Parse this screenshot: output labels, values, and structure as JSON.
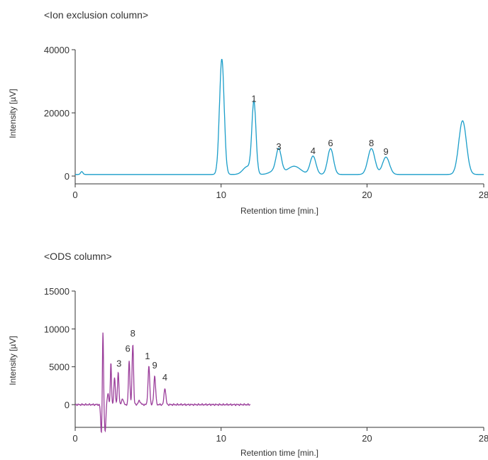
{
  "chart_data": [
    {
      "type": "line",
      "title": "<Ion exclusion column>",
      "xlabel": "Retention time [min.]",
      "ylabel": "Intensity [µV]",
      "xlim": [
        0,
        28
      ],
      "ylim": [
        0,
        40000
      ],
      "x_ticks": [
        0,
        10,
        20,
        28
      ],
      "y_ticks": [
        0,
        20000,
        40000
      ],
      "color": "#1a9dc9",
      "series": [
        {
          "baseline": 500,
          "trace_end": 28,
          "peaks": [
            {
              "x": 0.45,
              "y": 900,
              "width": 0.08
            },
            {
              "x": 10.05,
              "y": 36500,
              "width": 0.16
            },
            {
              "x": 11.8,
              "y": 2500,
              "width": 0.3
            },
            {
              "x": 12.25,
              "y": 22500,
              "width": 0.14
            },
            {
              "x": 13.7,
              "y": 1200,
              "width": 0.35
            },
            {
              "x": 13.95,
              "y": 7200,
              "width": 0.18
            },
            {
              "x": 15.0,
              "y": 2600,
              "width": 0.45
            },
            {
              "x": 16.3,
              "y": 5800,
              "width": 0.2
            },
            {
              "x": 17.5,
              "y": 8200,
              "width": 0.2
            },
            {
              "x": 20.3,
              "y": 8200,
              "width": 0.24
            },
            {
              "x": 21.3,
              "y": 5500,
              "width": 0.24
            },
            {
              "x": 26.55,
              "y": 17000,
              "width": 0.26
            }
          ]
        }
      ],
      "annotations": [
        {
          "text": "1",
          "x": 12.25,
          "y": 23500
        },
        {
          "text": "3",
          "x": 13.95,
          "y": 8300
        },
        {
          "text": "4",
          "x": 16.3,
          "y": 7000
        },
        {
          "text": "6",
          "x": 17.5,
          "y": 9400
        },
        {
          "text": "8",
          "x": 20.3,
          "y": 9400
        },
        {
          "text": "9",
          "x": 21.3,
          "y": 6700
        }
      ]
    },
    {
      "type": "line",
      "title": "<ODS column>",
      "xlabel": "Retention time [min.]",
      "ylabel": "Intensity [µV]",
      "xlim": [
        0,
        28
      ],
      "ylim": [
        -3000,
        15000
      ],
      "x_ticks": [
        0,
        10,
        20,
        28
      ],
      "y_ticks": [
        0,
        5000,
        10000,
        15000
      ],
      "color": "#9b3e9b",
      "series": [
        {
          "baseline": 0,
          "trace_end": 12,
          "peaks": [
            {
              "x": 1.8,
              "y": -4000,
              "width": 0.05
            },
            {
              "x": 1.9,
              "y": 10000,
              "width": 0.04
            },
            {
              "x": 2.05,
              "y": -3500,
              "width": 0.05
            },
            {
              "x": 2.25,
              "y": 1500,
              "width": 0.05
            },
            {
              "x": 2.45,
              "y": 5500,
              "width": 0.04
            },
            {
              "x": 2.7,
              "y": 3500,
              "width": 0.05
            },
            {
              "x": 2.95,
              "y": 4200,
              "width": 0.05
            },
            {
              "x": 3.25,
              "y": 800,
              "width": 0.06
            },
            {
              "x": 3.7,
              "y": 5800,
              "width": 0.05
            },
            {
              "x": 3.95,
              "y": 8000,
              "width": 0.05
            },
            {
              "x": 4.4,
              "y": 500,
              "width": 0.08
            },
            {
              "x": 5.05,
              "y": 5000,
              "width": 0.06
            },
            {
              "x": 5.45,
              "y": 3800,
              "width": 0.06
            },
            {
              "x": 6.15,
              "y": 2200,
              "width": 0.06
            }
          ]
        }
      ],
      "annotations": [
        {
          "text": "8",
          "x": 3.95,
          "y": 9000
        },
        {
          "text": "6",
          "x": 3.6,
          "y": 7000
        },
        {
          "text": "3",
          "x": 3.0,
          "y": 5000
        },
        {
          "text": "1",
          "x": 4.95,
          "y": 6000
        },
        {
          "text": "9",
          "x": 5.45,
          "y": 4800
        },
        {
          "text": "4",
          "x": 6.15,
          "y": 3200
        }
      ]
    }
  ]
}
